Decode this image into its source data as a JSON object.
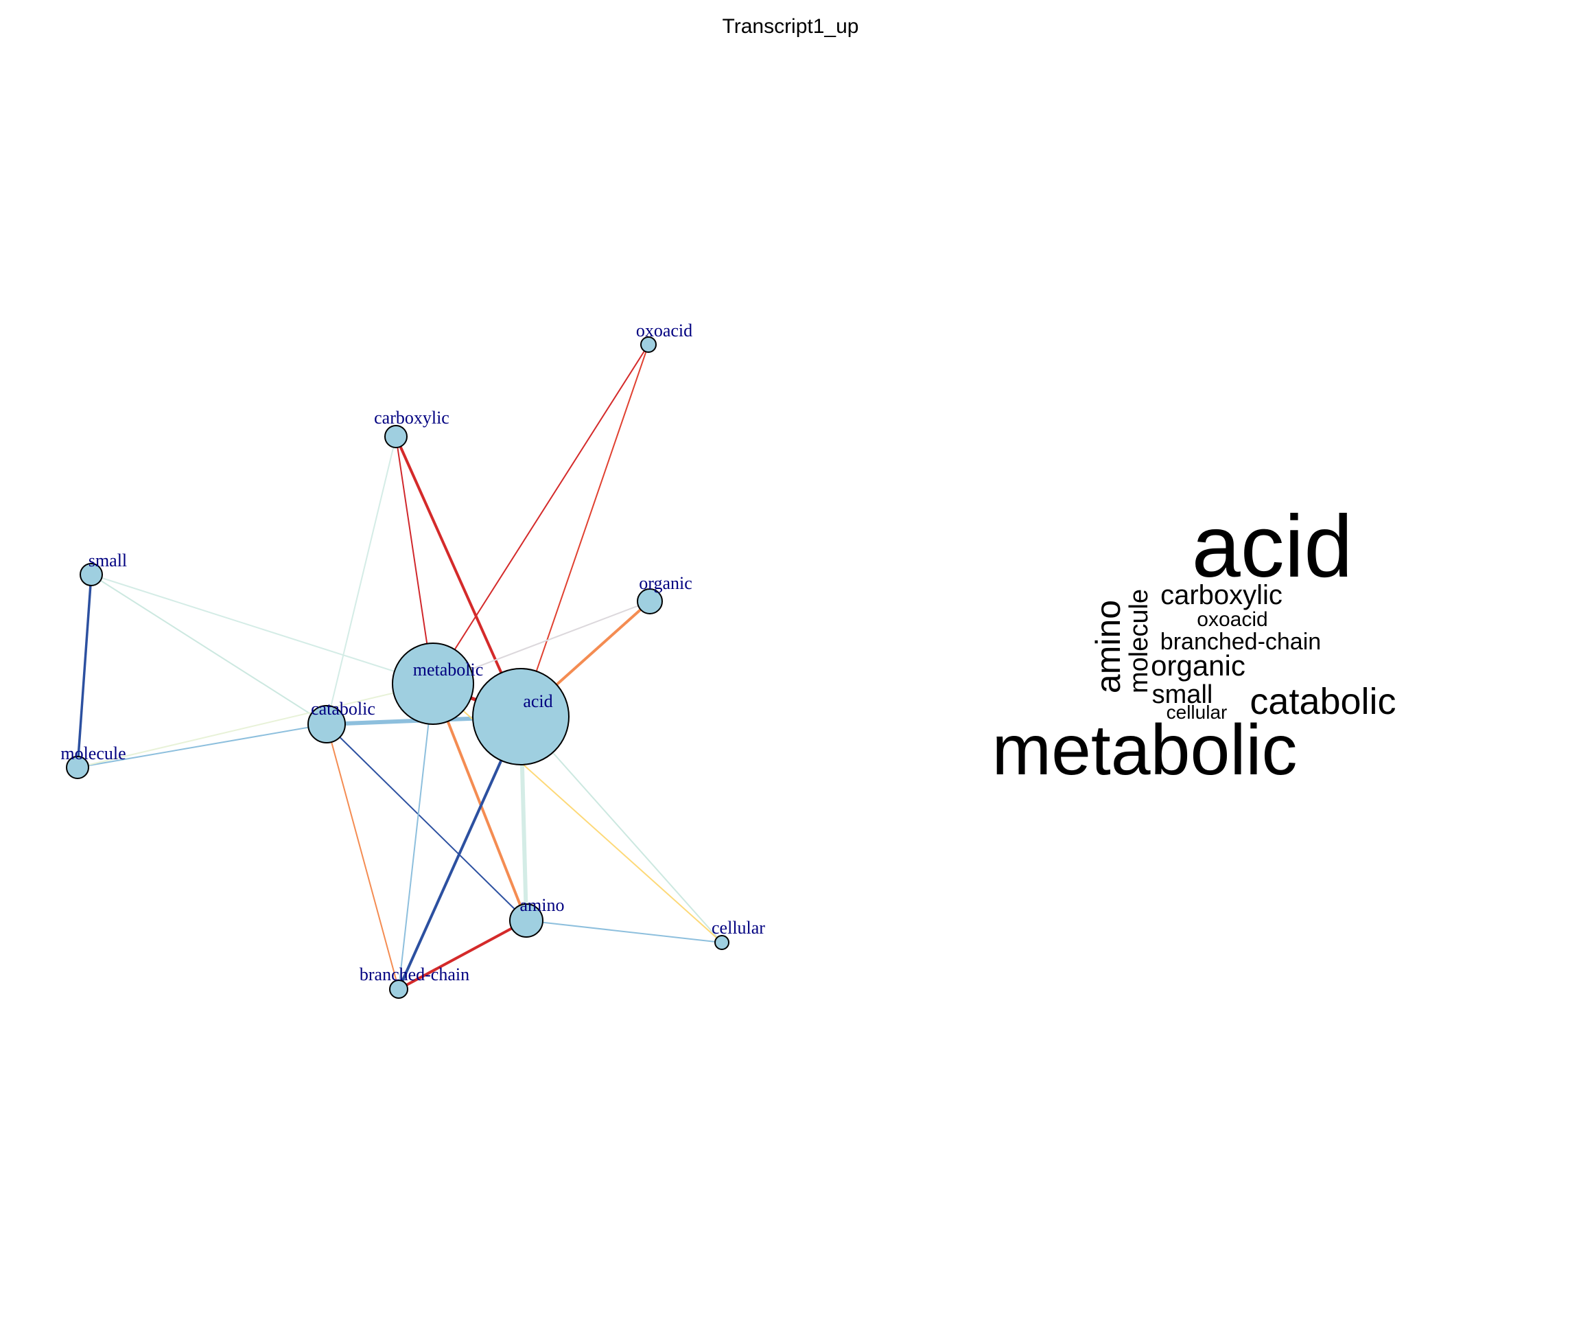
{
  "title": "Transcript1_up",
  "network": {
    "node_fill": "#9fcfe0",
    "node_stroke": "#000000",
    "label_color": "#000080",
    "nodes": [
      {
        "id": "oxoacid",
        "label": "oxoacid"
      },
      {
        "id": "carboxylic",
        "label": "carboxylic"
      },
      {
        "id": "small",
        "label": "small"
      },
      {
        "id": "organic",
        "label": "organic"
      },
      {
        "id": "metabolic",
        "label": "metabolic"
      },
      {
        "id": "acid",
        "label": "acid"
      },
      {
        "id": "catabolic",
        "label": "catabolic"
      },
      {
        "id": "molecule",
        "label": "molecule"
      },
      {
        "id": "amino",
        "label": "amino"
      },
      {
        "id": "cellular",
        "label": "cellular"
      },
      {
        "id": "branched-chain",
        "label": "branched-chain"
      }
    ],
    "edges": [
      {
        "source": "small",
        "target": "molecule",
        "color": "#2c50a0"
      },
      {
        "source": "small",
        "target": "metabolic",
        "color": "#d4ece6"
      },
      {
        "source": "small",
        "target": "catabolic",
        "color": "#cce8e0"
      },
      {
        "source": "molecule",
        "target": "catabolic",
        "color": "#8dbfdd"
      },
      {
        "source": "molecule",
        "target": "metabolic",
        "color": "#e8f2d8"
      },
      {
        "source": "carboxylic",
        "target": "acid",
        "color": "#d42a2a"
      },
      {
        "source": "carboxylic",
        "target": "metabolic",
        "color": "#d0272b"
      },
      {
        "source": "carboxylic",
        "target": "catabolic",
        "color": "#d4ece6"
      },
      {
        "source": "oxoacid",
        "target": "metabolic",
        "color": "#d42a2a"
      },
      {
        "source": "oxoacid",
        "target": "acid",
        "color": "#e04030"
      },
      {
        "source": "organic",
        "target": "acid",
        "color": "#f48c52"
      },
      {
        "source": "organic",
        "target": "metabolic",
        "color": "#dcd8dc"
      },
      {
        "source": "catabolic",
        "target": "acid",
        "color": "#8dbfdd"
      },
      {
        "source": "catabolic",
        "target": "amino",
        "color": "#2c50a0"
      },
      {
        "source": "catabolic",
        "target": "branched-chain",
        "color": "#f48c52"
      },
      {
        "source": "metabolic",
        "target": "amino",
        "color": "#f48c52"
      },
      {
        "source": "metabolic",
        "target": "branched-chain",
        "color": "#8dbfdd"
      },
      {
        "source": "acid",
        "target": "amino",
        "color": "#d4ece6"
      },
      {
        "source": "acid",
        "target": "branched-chain",
        "color": "#2c50a0"
      },
      {
        "source": "acid",
        "target": "cellular",
        "color": "#cce8e0"
      },
      {
        "source": "metabolic",
        "target": "cellular",
        "color": "#fdd978"
      },
      {
        "source": "amino",
        "target": "branched-chain",
        "color": "#d42a2a"
      },
      {
        "source": "amino",
        "target": "cellular",
        "color": "#8dbfdd"
      },
      {
        "source": "metabolic",
        "target": "acid",
        "color": "#d42a2a"
      }
    ]
  },
  "wordcloud": {
    "color": "#000000",
    "words": [
      {
        "text": "acid"
      },
      {
        "text": "metabolic"
      },
      {
        "text": "catabolic"
      },
      {
        "text": "amino"
      },
      {
        "text": "carboxylic"
      },
      {
        "text": "organic"
      },
      {
        "text": "branched-chain"
      },
      {
        "text": "molecule"
      },
      {
        "text": "small"
      },
      {
        "text": "oxoacid"
      },
      {
        "text": "cellular"
      }
    ]
  }
}
